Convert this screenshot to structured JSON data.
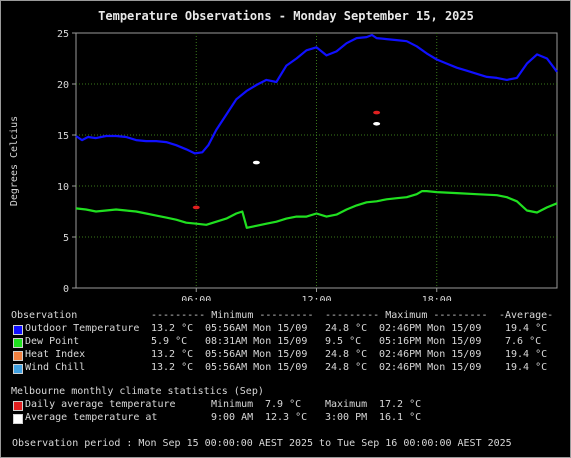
{
  "title": "Temperature Observations - Monday September 15, 2025",
  "chart_data": {
    "type": "line",
    "ylabel": "Degrees Celcius",
    "xlabel": "",
    "ylim": [
      0,
      25
    ],
    "xlim_hours": [
      0,
      24
    ],
    "y_ticks": [
      0,
      5,
      10,
      15,
      20,
      25
    ],
    "x_ticks": [
      {
        "hour": 6,
        "label": "06:00"
      },
      {
        "hour": 12,
        "label": "12:00"
      },
      {
        "hour": 18,
        "label": "18:00"
      }
    ],
    "grid": true,
    "series": [
      {
        "name": "Outdoor Temperature",
        "color": "#1010ff",
        "points": [
          [
            0,
            14.9
          ],
          [
            0.3,
            14.5
          ],
          [
            0.6,
            14.8
          ],
          [
            1,
            14.7
          ],
          [
            1.5,
            14.9
          ],
          [
            2,
            14.9
          ],
          [
            2.5,
            14.8
          ],
          [
            3,
            14.5
          ],
          [
            3.5,
            14.4
          ],
          [
            4,
            14.4
          ],
          [
            4.5,
            14.3
          ],
          [
            5,
            14.0
          ],
          [
            5.5,
            13.6
          ],
          [
            5.93,
            13.2
          ],
          [
            6.3,
            13.3
          ],
          [
            6.6,
            14.0
          ],
          [
            7,
            15.5
          ],
          [
            7.5,
            17.0
          ],
          [
            8,
            18.5
          ],
          [
            8.5,
            19.3
          ],
          [
            9,
            19.9
          ],
          [
            9.5,
            20.4
          ],
          [
            10,
            20.2
          ],
          [
            10.5,
            21.8
          ],
          [
            11,
            22.5
          ],
          [
            11.5,
            23.3
          ],
          [
            12,
            23.6
          ],
          [
            12.5,
            22.8
          ],
          [
            13,
            23.2
          ],
          [
            13.5,
            24.0
          ],
          [
            14,
            24.5
          ],
          [
            14.5,
            24.6
          ],
          [
            14.77,
            24.8
          ],
          [
            15,
            24.5
          ],
          [
            15.5,
            24.4
          ],
          [
            16,
            24.3
          ],
          [
            16.5,
            24.2
          ],
          [
            17,
            23.7
          ],
          [
            17.5,
            23.0
          ],
          [
            18,
            22.4
          ],
          [
            18.5,
            22.0
          ],
          [
            19,
            21.6
          ],
          [
            19.5,
            21.3
          ],
          [
            20,
            21.0
          ],
          [
            20.5,
            20.7
          ],
          [
            21,
            20.6
          ],
          [
            21.5,
            20.4
          ],
          [
            22,
            20.6
          ],
          [
            22.5,
            22.0
          ],
          [
            23,
            22.9
          ],
          [
            23.5,
            22.5
          ],
          [
            24,
            21.2
          ]
        ]
      },
      {
        "name": "Dew Point",
        "color": "#20e020",
        "points": [
          [
            0,
            7.8
          ],
          [
            0.5,
            7.7
          ],
          [
            1,
            7.5
          ],
          [
            1.5,
            7.6
          ],
          [
            2,
            7.7
          ],
          [
            2.5,
            7.6
          ],
          [
            3,
            7.5
          ],
          [
            3.5,
            7.3
          ],
          [
            4,
            7.1
          ],
          [
            4.5,
            6.9
          ],
          [
            5,
            6.7
          ],
          [
            5.5,
            6.4
          ],
          [
            6,
            6.3
          ],
          [
            6.5,
            6.2
          ],
          [
            7,
            6.5
          ],
          [
            7.5,
            6.8
          ],
          [
            8,
            7.3
          ],
          [
            8.3,
            7.5
          ],
          [
            8.52,
            5.9
          ],
          [
            9,
            6.1
          ],
          [
            9.5,
            6.3
          ],
          [
            10,
            6.5
          ],
          [
            10.5,
            6.8
          ],
          [
            11,
            7.0
          ],
          [
            11.5,
            7.0
          ],
          [
            12,
            7.3
          ],
          [
            12.5,
            7.0
          ],
          [
            13,
            7.2
          ],
          [
            13.5,
            7.7
          ],
          [
            14,
            8.1
          ],
          [
            14.5,
            8.4
          ],
          [
            15,
            8.5
          ],
          [
            15.5,
            8.7
          ],
          [
            16,
            8.8
          ],
          [
            16.5,
            8.9
          ],
          [
            17,
            9.2
          ],
          [
            17.27,
            9.5
          ],
          [
            17.5,
            9.5
          ],
          [
            18,
            9.4
          ],
          [
            19,
            9.3
          ],
          [
            20,
            9.2
          ],
          [
            21,
            9.1
          ],
          [
            21.5,
            8.9
          ],
          [
            22,
            8.5
          ],
          [
            22.5,
            7.6
          ],
          [
            23,
            7.4
          ],
          [
            23.5,
            7.9
          ],
          [
            24,
            8.3
          ]
        ]
      }
    ],
    "climate_markers": [
      {
        "series": "Daily average temperature",
        "type": "Minimum",
        "hour": 6.0,
        "value": 7.9,
        "color": "#e02020"
      },
      {
        "series": "Daily average temperature",
        "type": "Maximum",
        "hour": 15.0,
        "value": 17.2,
        "color": "#e02020"
      },
      {
        "series": "Average temperature at",
        "type": "9:00 AM",
        "hour": 9.0,
        "value": 12.3,
        "color": "#ffffff"
      },
      {
        "series": "Average temperature at",
        "type": "3:00 PM",
        "hour": 15.0,
        "value": 16.1,
        "color": "#ffffff"
      }
    ]
  },
  "legend": {
    "header": {
      "observation": "Observation",
      "minimum": "--------- Minimum ---------",
      "maximum": "--------- Maximum ---------",
      "average": "-Average-"
    },
    "rows": [
      {
        "label": "Outdoor Temperature",
        "color": "#1010ff",
        "min": "13.2 °C",
        "min_time": "05:56AM Mon 15/09",
        "max": "24.8 °C",
        "max_time": "02:46PM Mon 15/09",
        "avg": "19.4 °C"
      },
      {
        "label": "Dew Point",
        "color": "#20e020",
        "min": "5.9 °C",
        "min_time": "08:31AM Mon 15/09",
        "max": "9.5 °C",
        "max_time": "05:16PM Mon 15/09",
        "avg": "7.6 °C"
      },
      {
        "label": "Heat Index",
        "color": "#f08040",
        "min": "13.2 °C",
        "min_time": "05:56AM Mon 15/09",
        "max": "24.8 °C",
        "max_time": "02:46PM Mon 15/09",
        "avg": "19.4 °C"
      },
      {
        "label": "Wind Chill",
        "color": "#40a0e0",
        "min": "13.2 °C",
        "min_time": "05:56AM Mon 15/09",
        "max": "24.8 °C",
        "max_time": "02:46PM Mon 15/09",
        "avg": "19.4 °C"
      }
    ]
  },
  "climate": {
    "header": "Melbourne monthly climate statistics (Sep)",
    "rows": [
      {
        "label": "Daily average temperature",
        "color": "#e02020",
        "min_label": "Minimum",
        "min_value": "7.9 °C",
        "max_label": "Maximum",
        "max_value": "17.2 °C"
      },
      {
        "label": "Average temperature at",
        "color": "#ffffff",
        "min_label": "9:00 AM",
        "min_value": "12.3 °C",
        "max_label": "3:00 PM",
        "max_value": "16.1 °C"
      }
    ]
  },
  "period": "Observation period : Mon Sep 15 00:00:00 AEST 2025 to Tue Sep 16 00:00:00 AEST 2025"
}
